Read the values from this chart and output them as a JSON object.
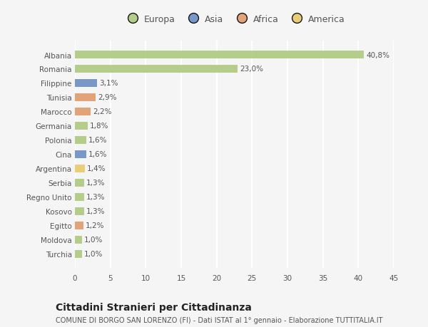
{
  "countries": [
    "Albania",
    "Romania",
    "Filippine",
    "Tunisia",
    "Marocco",
    "Germania",
    "Polonia",
    "Cina",
    "Argentina",
    "Serbia",
    "Regno Unito",
    "Kosovo",
    "Egitto",
    "Moldova",
    "Turchia"
  ],
  "values": [
    40.8,
    23.0,
    3.1,
    2.9,
    2.2,
    1.8,
    1.6,
    1.6,
    1.4,
    1.3,
    1.3,
    1.3,
    1.2,
    1.0,
    1.0
  ],
  "labels": [
    "40,8%",
    "23,0%",
    "3,1%",
    "2,9%",
    "2,2%",
    "1,8%",
    "1,6%",
    "1,6%",
    "1,4%",
    "1,3%",
    "1,3%",
    "1,3%",
    "1,2%",
    "1,0%",
    "1,0%"
  ],
  "continents": [
    "Europa",
    "Europa",
    "Asia",
    "Africa",
    "Africa",
    "Europa",
    "Europa",
    "Asia",
    "America",
    "Europa",
    "Europa",
    "Europa",
    "Africa",
    "Europa",
    "Europa"
  ],
  "colors": {
    "Europa": "#adc97e",
    "Asia": "#6a8fc2",
    "Africa": "#e09a6a",
    "America": "#e8c96a"
  },
  "xlim": [
    0,
    45
  ],
  "xticks": [
    0,
    5,
    10,
    15,
    20,
    25,
    30,
    35,
    40,
    45
  ],
  "title": "Cittadini Stranieri per Cittadinanza",
  "subtitle": "COMUNE DI BORGO SAN LORENZO (FI) - Dati ISTAT al 1° gennaio - Elaborazione TUTTITALIA.IT",
  "bg_color": "#f5f5f5",
  "grid_color": "#ffffff",
  "bar_height": 0.55,
  "label_fontsize": 7.5,
  "tick_fontsize": 7.5,
  "title_fontsize": 10,
  "subtitle_fontsize": 7
}
